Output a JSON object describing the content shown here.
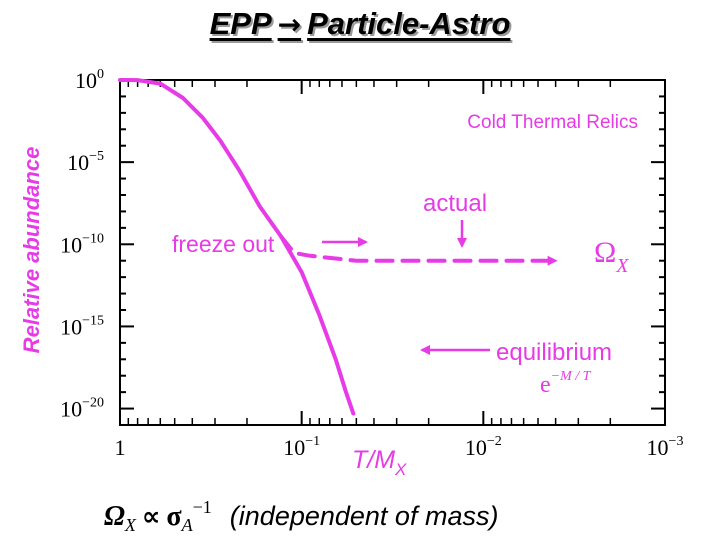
{
  "slide": {
    "title_left": "EPP",
    "title_arrow": "→",
    "title_right": "Particle-Astro",
    "bottom": {
      "omega": "Ω",
      "omega_sub": "X",
      "relation": "∝",
      "sigma": "σ",
      "sigma_sub": "A",
      "sigma_sup": "−1",
      "note": "(independent of mass)"
    }
  },
  "chart_data": {
    "type": "line",
    "title": "Cold Thermal Relics",
    "xlabel": "T/M",
    "xlabel_sub": "X",
    "ylabel": "Relative abundance",
    "x_scale": "log",
    "x_reversed": true,
    "y_scale": "log",
    "xlim": [
      1,
      0.001
    ],
    "ylim": [
      1e-21,
      1
    ],
    "x_ticks": [
      {
        "value": 1,
        "base": "1",
        "exp": ""
      },
      {
        "value": 0.1,
        "base": "10",
        "exp": "−1"
      },
      {
        "value": 0.01,
        "base": "10",
        "exp": "−2"
      },
      {
        "value": 0.001,
        "base": "10",
        "exp": "−3"
      }
    ],
    "y_ticks": [
      {
        "value": 1,
        "base": "10",
        "exp": "0"
      },
      {
        "value": 1e-05,
        "base": "10",
        "exp": "−5"
      },
      {
        "value": 1e-10,
        "base": "10",
        "exp": "−10"
      },
      {
        "value": 1e-15,
        "base": "10",
        "exp": "−15"
      },
      {
        "value": 1e-20,
        "base": "10",
        "exp": "−20"
      }
    ],
    "grid": false,
    "series": [
      {
        "role": "equilibrium",
        "style": "solid",
        "points": [
          {
            "x": 1,
            "y": 1
          },
          {
            "x": 0.8,
            "y": 0.99
          },
          {
            "x": 0.6,
            "y": 0.6
          },
          {
            "x": 0.45,
            "y": 0.08
          },
          {
            "x": 0.35,
            "y": 0.005
          },
          {
            "x": 0.28,
            "y": 0.0002
          },
          {
            "x": 0.22,
            "y": 3e-06
          },
          {
            "x": 0.17,
            "y": 2e-08
          },
          {
            "x": 0.13,
            "y": 3e-10
          },
          {
            "x": 0.1,
            "y": 2e-12
          },
          {
            "x": 0.08,
            "y": 5e-15
          },
          {
            "x": 0.065,
            "y": 1e-17
          },
          {
            "x": 0.057,
            "y": 1e-19
          },
          {
            "x": 0.052,
            "y": 5e-21
          }
        ]
      },
      {
        "role": "actual",
        "style": "dashed",
        "points": [
          {
            "x": 0.13,
            "y": 3e-10
          },
          {
            "x": 0.11,
            "y": 3e-11
          },
          {
            "x": 0.09,
            "y": 2e-11
          },
          {
            "x": 0.05,
            "y": 1e-11
          },
          {
            "x": 0.004,
            "y": 1e-11
          }
        ]
      }
    ],
    "annotations": [
      {
        "text": "freeze out",
        "arrow": "right"
      },
      {
        "text": "actual",
        "arrow": "down"
      },
      {
        "text": "equilibrium",
        "arrow": "left"
      },
      {
        "text": "e",
        "exp": "−M / T"
      },
      {
        "text": "Ω",
        "sub": "X"
      }
    ],
    "colors": {
      "curve": "#e63be6",
      "axes": "#000000"
    }
  }
}
